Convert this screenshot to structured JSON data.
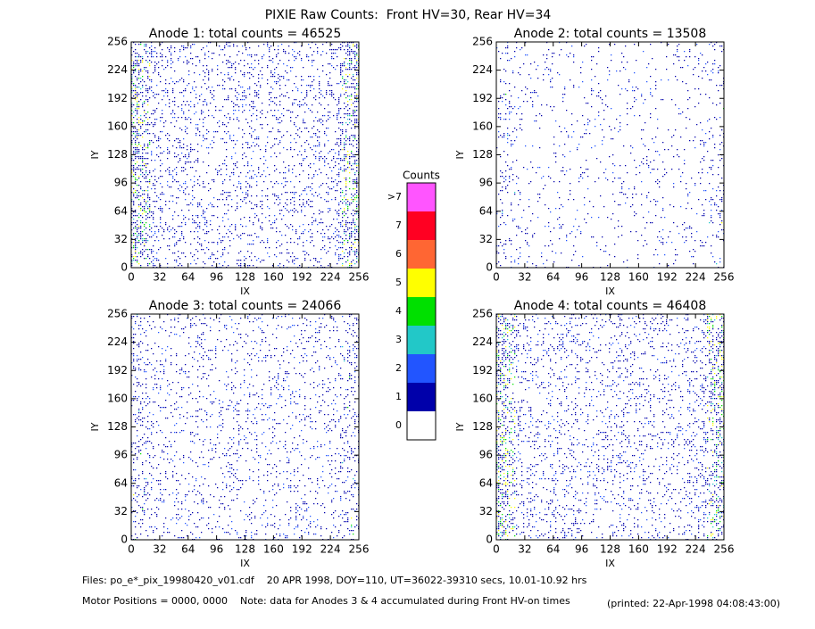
{
  "title": "PIXIE Raw Counts:  Front HV=30, Rear HV=34",
  "chart_data": [
    {
      "type": "heatmap",
      "title": "Anode 1: total counts = 46525",
      "xlabel": "IX",
      "ylabel": "IY",
      "xlim": [
        0,
        256
      ],
      "ylim": [
        0,
        256
      ],
      "xticks": [
        0,
        32,
        64,
        96,
        128,
        160,
        192,
        224,
        256
      ],
      "yticks": [
        0,
        32,
        64,
        96,
        128,
        160,
        192,
        224,
        256
      ]
    },
    {
      "type": "heatmap",
      "title": "Anode 2: total counts = 13508",
      "xlabel": "IX",
      "ylabel": "IY",
      "xlim": [
        0,
        256
      ],
      "ylim": [
        0,
        256
      ],
      "xticks": [
        0,
        32,
        64,
        96,
        128,
        160,
        192,
        224,
        256
      ],
      "yticks": [
        0,
        32,
        64,
        96,
        128,
        160,
        192,
        224,
        256
      ]
    },
    {
      "type": "heatmap",
      "title": "Anode 3: total counts = 24066",
      "xlabel": "IX",
      "ylabel": "IY",
      "xlim": [
        0,
        256
      ],
      "ylim": [
        0,
        256
      ],
      "xticks": [
        0,
        32,
        64,
        96,
        128,
        160,
        192,
        224,
        256
      ],
      "yticks": [
        0,
        32,
        64,
        96,
        128,
        160,
        192,
        224,
        256
      ]
    },
    {
      "type": "heatmap",
      "title": "Anode 4: total counts = 46408",
      "xlabel": "IX",
      "ylabel": "IY",
      "xlim": [
        0,
        256
      ],
      "ylim": [
        0,
        256
      ],
      "xticks": [
        0,
        32,
        64,
        96,
        128,
        160,
        192,
        224,
        256
      ],
      "yticks": [
        0,
        32,
        64,
        96,
        128,
        160,
        192,
        224,
        256
      ]
    }
  ],
  "colorbar": {
    "title": "Counts",
    "ylim": [
      -0.5,
      8.5
    ],
    "ticks": [
      0,
      1,
      2,
      3,
      4,
      5,
      6,
      7,
      {
        "value": 8,
        "label": ">7"
      }
    ],
    "colors": [
      "#ffffff",
      "#0000aa",
      "#2255ff",
      "#22c8c8",
      "#00e000",
      "#ffff00",
      "#ff6633",
      "#ff0022",
      "#ff55ff"
    ]
  },
  "footer": {
    "files": "Files: po_e*_pix_19980420_v01.cdf    20 APR 1998, DOY=110, UT=36022-39310 secs, 10.01-10.92 hrs",
    "motor": "Motor Positions = 0000, 0000    Note: data for Anodes 3 & 4 accumulated during Front HV-on times",
    "printed": "(printed: 22-Apr-1998 04:08:43:00)"
  }
}
